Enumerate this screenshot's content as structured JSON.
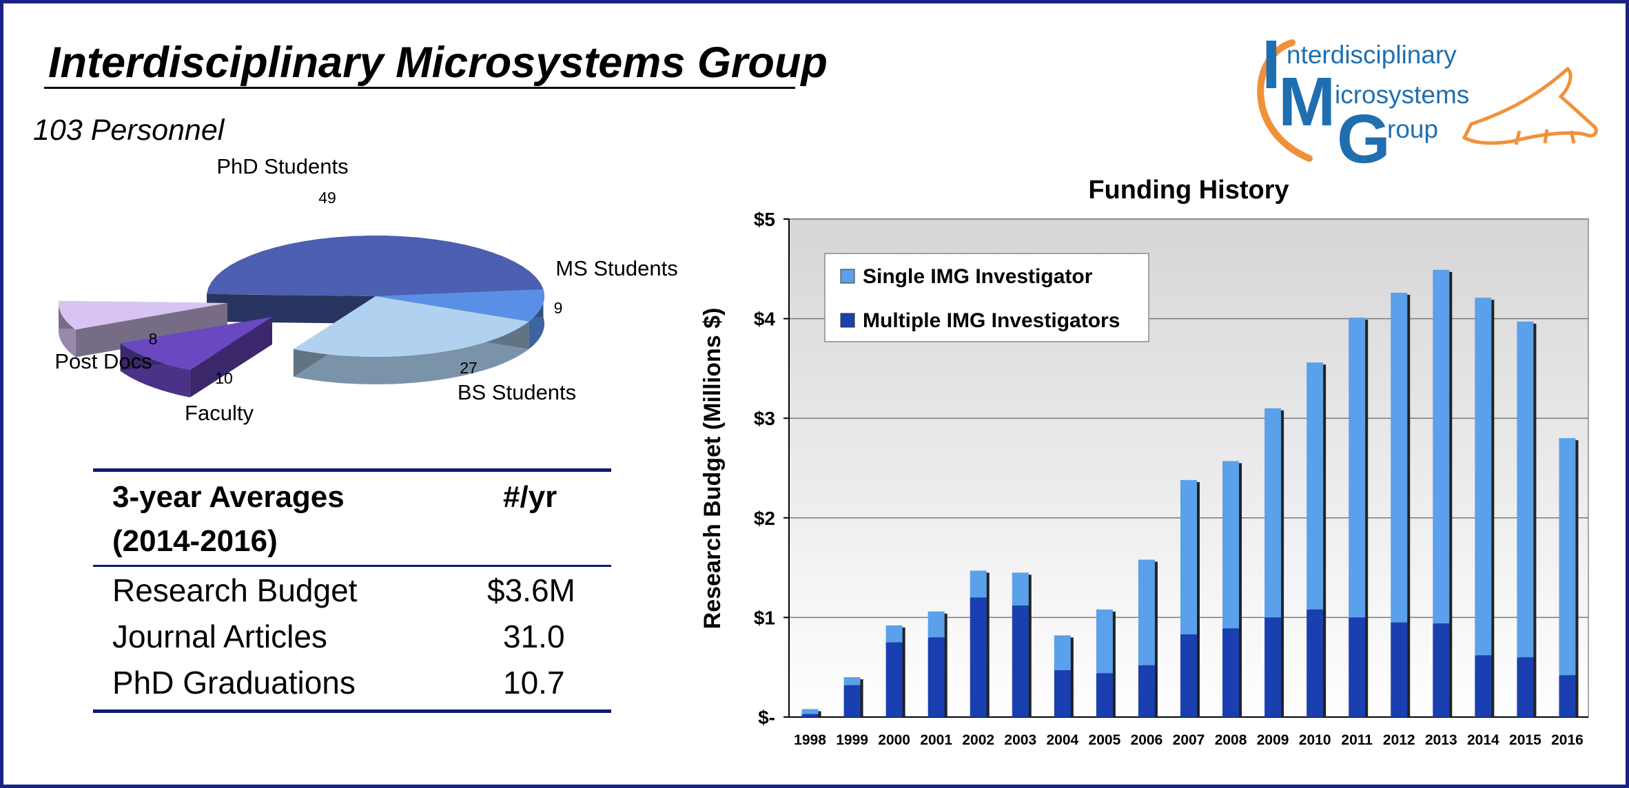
{
  "header": {
    "title": "Interdisciplinary Microsystems Group",
    "subtitle": "103 Personnel"
  },
  "logo": {
    "line1_initial": "I",
    "line1_rest": "nterdisciplinary",
    "line2_initial": "M",
    "line2_rest": "icrosystems",
    "line3_initial": "G",
    "line3_rest": "roup",
    "color": "#1f6fb0",
    "accent": "#f0913a"
  },
  "averages": {
    "header_label": "3-year Averages (2014-2016)",
    "header_label_line1": "3-year Averages",
    "header_label_line2": "(2014-2016)",
    "header_value": "#/yr",
    "rows": [
      {
        "label": "Research Budget",
        "value": "$3.6M"
      },
      {
        "label": "Journal Articles",
        "value": "31.0"
      },
      {
        "label": "PhD Graduations",
        "value": "10.7"
      }
    ]
  },
  "chart_data": [
    {
      "type": "pie",
      "title": "",
      "categories": [
        "PhD Students",
        "MS Students",
        "BS Students",
        "Faculty",
        "Post Docs"
      ],
      "values": [
        49,
        9,
        27,
        10,
        8
      ],
      "colors": [
        "#4d5fb0",
        "#5a8fe6",
        "#b0d2f0",
        "#6a48c2",
        "#d8c4f2"
      ],
      "exploded": [
        "Faculty",
        "Post Docs"
      ]
    },
    {
      "type": "bar",
      "stacked": true,
      "title": "Funding History",
      "xlabel": "",
      "ylabel": "Research Budget (Millions $)",
      "ylim": [
        0,
        5
      ],
      "yticks": [
        0,
        1,
        2,
        3,
        4,
        5
      ],
      "ytick_labels": [
        "$-",
        "$1",
        "$2",
        "$3",
        "$4",
        "$5"
      ],
      "grid": true,
      "legend_position": "top-left",
      "categories": [
        "1998",
        "1999",
        "2000",
        "2001",
        "2002",
        "2003",
        "2004",
        "2005",
        "2006",
        "2007",
        "2008",
        "2009",
        "2010",
        "2011",
        "2012",
        "2013",
        "2014",
        "2015",
        "2016"
      ],
      "series": [
        {
          "name": "Multiple IMG Investigators",
          "color": "#1a3fb0",
          "values": [
            0.03,
            0.32,
            0.75,
            0.8,
            1.2,
            1.12,
            0.47,
            0.44,
            0.52,
            0.83,
            0.89,
            1.0,
            1.08,
            1.0,
            0.95,
            0.94,
            0.62,
            0.6,
            0.42
          ]
        },
        {
          "name": "Single IMG Investigator",
          "color": "#5aa0ea",
          "values": [
            0.05,
            0.08,
            0.17,
            0.26,
            0.27,
            0.33,
            0.35,
            0.64,
            1.06,
            1.55,
            1.68,
            2.1,
            2.48,
            3.01,
            3.31,
            3.55,
            3.59,
            3.37,
            2.38
          ]
        }
      ]
    }
  ]
}
